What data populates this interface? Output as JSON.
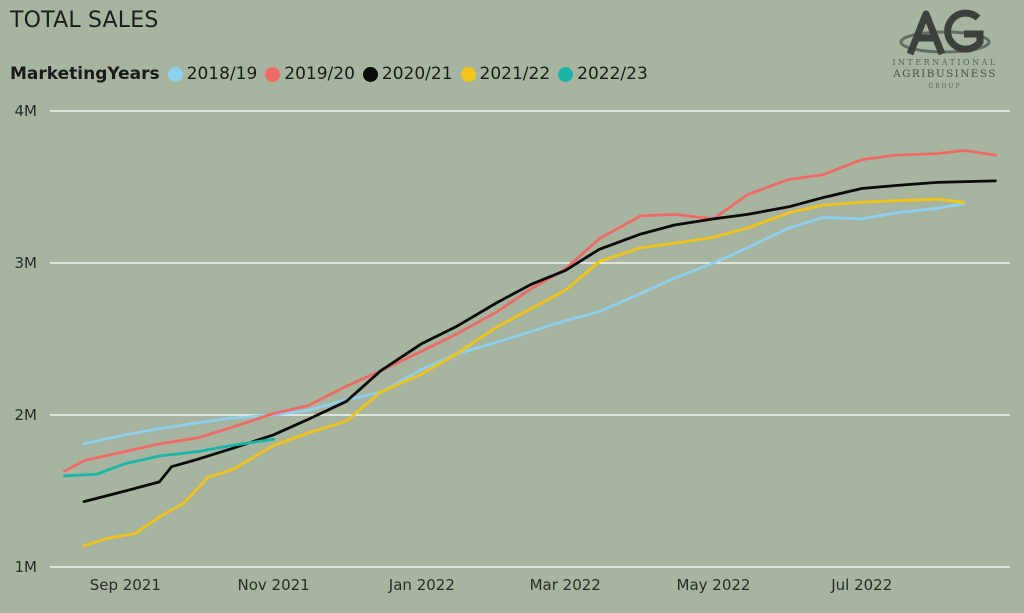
{
  "title": "TOTAL SALES",
  "legend": {
    "title": "MarketingYears",
    "items": [
      {
        "label": "2018/19",
        "color": "#8fd0ee"
      },
      {
        "label": "2019/20",
        "color": "#f06a65"
      },
      {
        "label": "2020/21",
        "color": "#0a0a0a"
      },
      {
        "label": "2021/22",
        "color": "#f2c318"
      },
      {
        "label": "2022/23",
        "color": "#1bb5a8"
      }
    ]
  },
  "logo": {
    "line1": "INTERNATIONAL",
    "line2": "AGRIBUSINESS",
    "line3": "GROUP"
  },
  "chart_data": {
    "type": "line",
    "title": "TOTAL SALES",
    "legend_title": "MarketingYears",
    "legend_position": "top-left",
    "x_tick_labels": [
      "Sep 2021",
      "Nov 2021",
      "Jan 2022",
      "Mar 2022",
      "May 2022",
      "Jul 2022"
    ],
    "x_range": [
      "2021-08-01",
      "2022-08-31"
    ],
    "y_tick_labels": [
      "1M",
      "2M",
      "3M",
      "4M"
    ],
    "y_ticks": [
      1000000,
      2000000,
      3000000,
      4000000
    ],
    "ylim": [
      1000000,
      4000000
    ],
    "grid": true,
    "series": [
      {
        "name": "2018/19",
        "color": "#8fd0ee",
        "points": [
          [
            "2021-08-15",
            1810000
          ],
          [
            "2021-09-01",
            1870000
          ],
          [
            "2021-09-15",
            1910000
          ],
          [
            "2021-10-01",
            1950000
          ],
          [
            "2021-10-15",
            1980000
          ],
          [
            "2021-11-01",
            2000000
          ],
          [
            "2021-11-15",
            2030000
          ],
          [
            "2021-12-01",
            2100000
          ],
          [
            "2021-12-15",
            2150000
          ],
          [
            "2022-01-01",
            2300000
          ],
          [
            "2022-01-15",
            2400000
          ],
          [
            "2022-02-01",
            2480000
          ],
          [
            "2022-02-15",
            2550000
          ],
          [
            "2022-03-01",
            2620000
          ],
          [
            "2022-03-15",
            2680000
          ],
          [
            "2022-04-01",
            2800000
          ],
          [
            "2022-04-15",
            2900000
          ],
          [
            "2022-05-01",
            3000000
          ],
          [
            "2022-05-15",
            3100000
          ],
          [
            "2022-06-01",
            3230000
          ],
          [
            "2022-06-15",
            3300000
          ],
          [
            "2022-07-01",
            3290000
          ],
          [
            "2022-07-15",
            3330000
          ],
          [
            "2022-08-01",
            3360000
          ],
          [
            "2022-08-12",
            3390000
          ]
        ]
      },
      {
        "name": "2019/20",
        "color": "#f06a65",
        "points": [
          [
            "2021-08-07",
            1630000
          ],
          [
            "2021-08-15",
            1700000
          ],
          [
            "2021-09-01",
            1760000
          ],
          [
            "2021-09-15",
            1810000
          ],
          [
            "2021-10-01",
            1850000
          ],
          [
            "2021-10-15",
            1920000
          ],
          [
            "2021-11-01",
            2010000
          ],
          [
            "2021-11-15",
            2060000
          ],
          [
            "2021-12-01",
            2190000
          ],
          [
            "2021-12-15",
            2290000
          ],
          [
            "2022-01-01",
            2420000
          ],
          [
            "2022-01-15",
            2530000
          ],
          [
            "2022-02-01",
            2680000
          ],
          [
            "2022-02-15",
            2830000
          ],
          [
            "2022-03-01",
            2960000
          ],
          [
            "2022-03-15",
            3160000
          ],
          [
            "2022-04-01",
            3310000
          ],
          [
            "2022-04-15",
            3320000
          ],
          [
            "2022-05-01",
            3290000
          ],
          [
            "2022-05-15",
            3450000
          ],
          [
            "2022-06-01",
            3550000
          ],
          [
            "2022-06-15",
            3580000
          ],
          [
            "2022-07-01",
            3680000
          ],
          [
            "2022-07-15",
            3710000
          ],
          [
            "2022-08-01",
            3720000
          ],
          [
            "2022-08-12",
            3740000
          ],
          [
            "2022-08-25",
            3710000
          ]
        ]
      },
      {
        "name": "2020/21",
        "color": "#0a0a0a",
        "points": [
          [
            "2021-08-15",
            1430000
          ],
          [
            "2021-09-01",
            1500000
          ],
          [
            "2021-09-15",
            1560000
          ],
          [
            "2021-09-20",
            1660000
          ],
          [
            "2021-10-01",
            1710000
          ],
          [
            "2021-10-15",
            1780000
          ],
          [
            "2021-11-01",
            1870000
          ],
          [
            "2021-11-15",
            1970000
          ],
          [
            "2021-12-01",
            2090000
          ],
          [
            "2021-12-15",
            2290000
          ],
          [
            "2022-01-01",
            2470000
          ],
          [
            "2022-01-15",
            2580000
          ],
          [
            "2022-02-01",
            2740000
          ],
          [
            "2022-02-15",
            2860000
          ],
          [
            "2022-03-01",
            2950000
          ],
          [
            "2022-03-15",
            3090000
          ],
          [
            "2022-04-01",
            3190000
          ],
          [
            "2022-04-15",
            3250000
          ],
          [
            "2022-05-01",
            3290000
          ],
          [
            "2022-05-15",
            3320000
          ],
          [
            "2022-06-01",
            3370000
          ],
          [
            "2022-06-15",
            3430000
          ],
          [
            "2022-07-01",
            3490000
          ],
          [
            "2022-07-15",
            3510000
          ],
          [
            "2022-08-01",
            3530000
          ],
          [
            "2022-08-25",
            3540000
          ]
        ]
      },
      {
        "name": "2021/22",
        "color": "#f2c318",
        "points": [
          [
            "2021-08-15",
            1140000
          ],
          [
            "2021-08-25",
            1190000
          ],
          [
            "2021-09-05",
            1220000
          ],
          [
            "2021-09-15",
            1330000
          ],
          [
            "2021-09-25",
            1420000
          ],
          [
            "2021-10-05",
            1590000
          ],
          [
            "2021-10-15",
            1640000
          ],
          [
            "2021-11-01",
            1800000
          ],
          [
            "2021-11-15",
            1880000
          ],
          [
            "2021-12-01",
            1960000
          ],
          [
            "2021-12-15",
            2150000
          ],
          [
            "2022-01-01",
            2270000
          ],
          [
            "2022-01-15",
            2400000
          ],
          [
            "2022-02-01",
            2580000
          ],
          [
            "2022-02-15",
            2700000
          ],
          [
            "2022-03-01",
            2820000
          ],
          [
            "2022-03-15",
            3010000
          ],
          [
            "2022-04-01",
            3100000
          ],
          [
            "2022-04-15",
            3130000
          ],
          [
            "2022-05-01",
            3170000
          ],
          [
            "2022-05-15",
            3230000
          ],
          [
            "2022-06-01",
            3330000
          ],
          [
            "2022-06-15",
            3380000
          ],
          [
            "2022-07-01",
            3400000
          ],
          [
            "2022-07-15",
            3410000
          ],
          [
            "2022-08-01",
            3420000
          ],
          [
            "2022-08-12",
            3400000
          ]
        ]
      },
      {
        "name": "2022/23",
        "color": "#1bb5a8",
        "points": [
          [
            "2021-08-07",
            1600000
          ],
          [
            "2021-08-20",
            1610000
          ],
          [
            "2021-09-01",
            1680000
          ],
          [
            "2021-09-15",
            1730000
          ],
          [
            "2021-10-01",
            1760000
          ],
          [
            "2021-10-15",
            1800000
          ],
          [
            "2021-11-01",
            1840000
          ]
        ]
      }
    ]
  }
}
